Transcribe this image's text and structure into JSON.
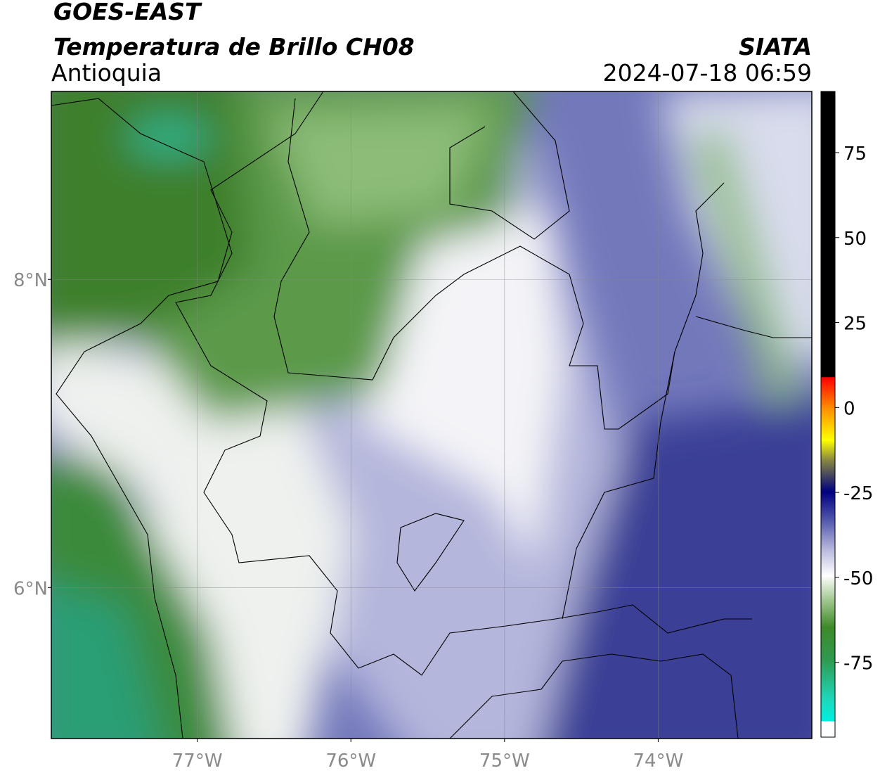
{
  "header": {
    "title": "GOES-EAST",
    "subtitle": "Temperatura de Brillo CH08",
    "region": "Antioquia",
    "source": "SIATA",
    "datetime": "2024-07-18 06:59"
  },
  "map": {
    "lonlim": [
      -77.95,
      -73.0
    ],
    "latlim": [
      5.02,
      9.22
    ],
    "lon_ticks": [
      {
        "value": -77,
        "label": "77°W"
      },
      {
        "value": -76,
        "label": "76°W"
      },
      {
        "value": -75,
        "label": "75°W"
      },
      {
        "value": -74,
        "label": "74°W"
      }
    ],
    "lat_ticks": [
      {
        "value": 8,
        "label": "8°N"
      },
      {
        "value": 6,
        "label": "6°N"
      }
    ]
  },
  "colorbar": {
    "lim": [
      -97,
      93
    ],
    "ticks": [
      75,
      50,
      25,
      0,
      -25,
      -50,
      -75
    ]
  }
}
